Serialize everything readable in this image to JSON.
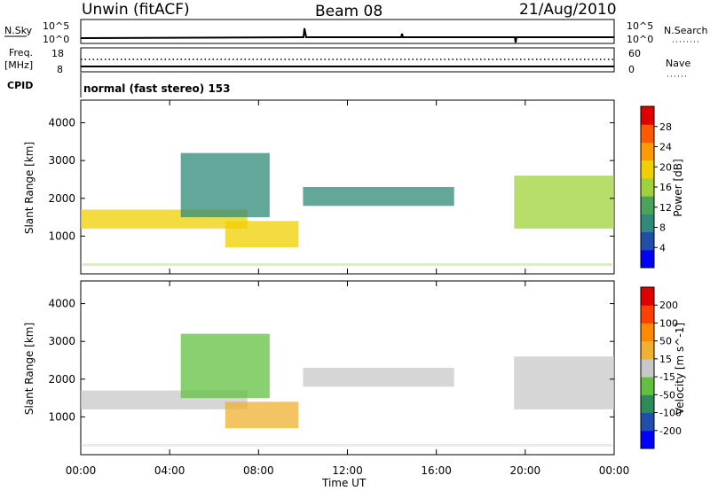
{
  "header": {
    "station": "Unwin (fitACF)",
    "beam": "Beam 08",
    "date": "21/Aug/2010"
  },
  "strips": {
    "nsky_label": "N.Sky",
    "nsky_ticks": [
      "10^5",
      "10^0"
    ],
    "nsearch_label": "N.Search",
    "nsearch_ticks": [
      "10^5",
      "10^0"
    ],
    "freq_label": "Freq.",
    "freq_unit": "[MHz]",
    "freq_ticks": [
      "18",
      "8"
    ],
    "nave_label": "Nave",
    "nave_ticks": [
      "60",
      "0"
    ],
    "cpid_label": "CPID",
    "cpid_value": "normal (fast stereo) 153"
  },
  "colors": {
    "power_scale": [
      "#0000ff",
      "#1f4fa8",
      "#2f8a7a",
      "#4aa35a",
      "#9fd23a",
      "#f0d000",
      "#ff9a00",
      "#ff5a00",
      "#e00000"
    ],
    "velocity_scale": [
      "#0000ff",
      "#1f4fa8",
      "#2e8b57",
      "#60c040",
      "#c8c8c8",
      "#f0b030",
      "#ff8a00",
      "#ff4000",
      "#e00000"
    ]
  },
  "chart_data": [
    {
      "type": "heatmap",
      "title": "",
      "xlabel": "Time UT",
      "ylabel": "Slant Range [km]",
      "xlim": [
        "00:00",
        "24:00"
      ],
      "ylim": [
        0,
        4600
      ],
      "x_ticks": [
        "00:00",
        "04:00",
        "08:00",
        "12:00",
        "16:00",
        "20:00",
        "00:00"
      ],
      "y_ticks": [
        "1000",
        "2000",
        "3000",
        "4000"
      ],
      "colorbar": {
        "label": "Power [dB]",
        "ticks": [
          "4",
          "8",
          "12",
          "16",
          "20",
          "24",
          "28"
        ]
      },
      "echo_regions": [
        {
          "start_ut": 0.0,
          "end_ut": 7.5,
          "range_km": [
            1200,
            1700
          ],
          "value": 18
        },
        {
          "start_ut": 4.5,
          "end_ut": 8.5,
          "range_km": [
            1500,
            3200
          ],
          "value": 10
        },
        {
          "start_ut": 6.5,
          "end_ut": 9.8,
          "range_km": [
            700,
            1400
          ],
          "value": 20
        },
        {
          "start_ut": 10.0,
          "end_ut": 16.8,
          "range_km": [
            1800,
            2300
          ],
          "value": 8
        },
        {
          "start_ut": 19.5,
          "end_ut": 24.0,
          "range_km": [
            1200,
            2600
          ],
          "value": 16
        }
      ]
    },
    {
      "type": "heatmap",
      "title": "",
      "xlabel": "Time UT",
      "ylabel": "Slant Range [km]",
      "xlim": [
        "00:00",
        "24:00"
      ],
      "ylim": [
        0,
        4600
      ],
      "x_ticks": [
        "00:00",
        "04:00",
        "08:00",
        "12:00",
        "16:00",
        "20:00",
        "00:00"
      ],
      "y_ticks": [
        "1000",
        "2000",
        "3000",
        "4000"
      ],
      "colorbar": {
        "label": "Velocity [m s^-1]",
        "ticks": [
          "200",
          "100",
          "50",
          "15",
          "-15",
          "-50",
          "-100",
          "-200"
        ]
      },
      "echo_regions": [
        {
          "start_ut": 0.0,
          "end_ut": 7.5,
          "range_km": [
            1200,
            1700
          ],
          "value": 0
        },
        {
          "start_ut": 4.5,
          "end_ut": 8.5,
          "range_km": [
            1500,
            3200
          ],
          "value": -30
        },
        {
          "start_ut": 6.5,
          "end_ut": 9.8,
          "range_km": [
            700,
            1400
          ],
          "value": 30
        },
        {
          "start_ut": 10.0,
          "end_ut": 16.8,
          "range_km": [
            1800,
            2300
          ],
          "value": 0
        },
        {
          "start_ut": 19.5,
          "end_ut": 24.0,
          "range_km": [
            1200,
            2600
          ],
          "value": 0
        }
      ]
    }
  ]
}
